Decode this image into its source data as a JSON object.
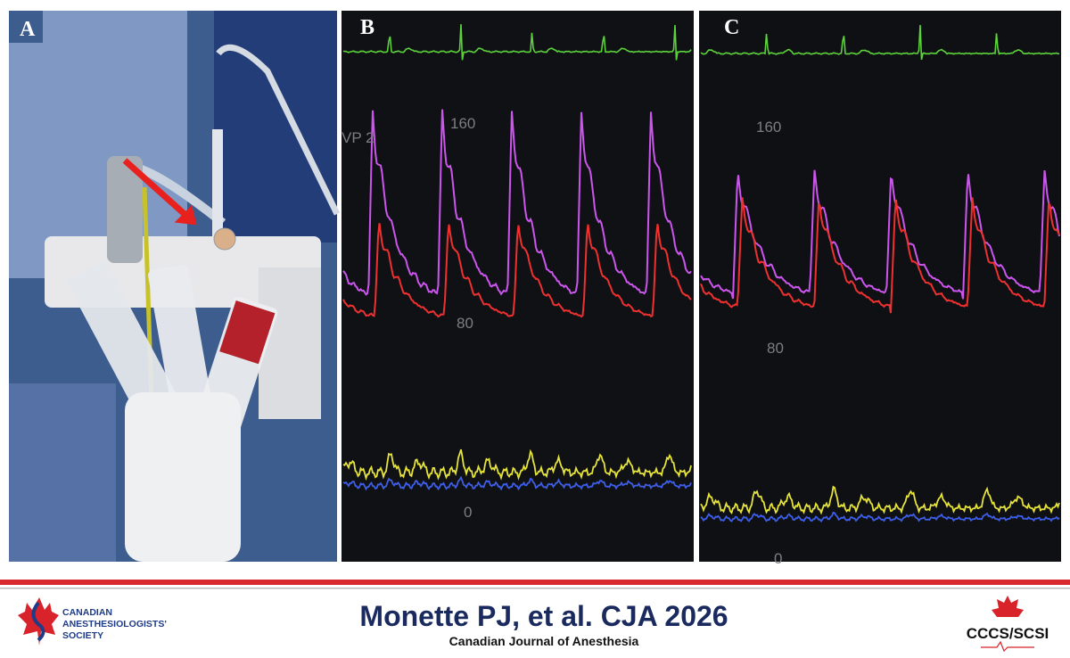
{
  "panels": [
    {
      "label": "A"
    },
    {
      "label": "B",
      "channel_label": "VP 2",
      "scale_labels": [
        "160",
        "80",
        "0"
      ]
    },
    {
      "label": "C",
      "scale_labels": [
        "160",
        "80",
        "0"
      ]
    }
  ],
  "footer": {
    "citation": "Monette PJ, et al. CJA 2026",
    "journal": "Canadian Journal of Anesthesia",
    "left_logo": [
      "CANADIAN",
      "ANESTHESIOLOGISTS'",
      "SOCIETY"
    ],
    "right_logo": "CCCS/SCSI"
  }
}
